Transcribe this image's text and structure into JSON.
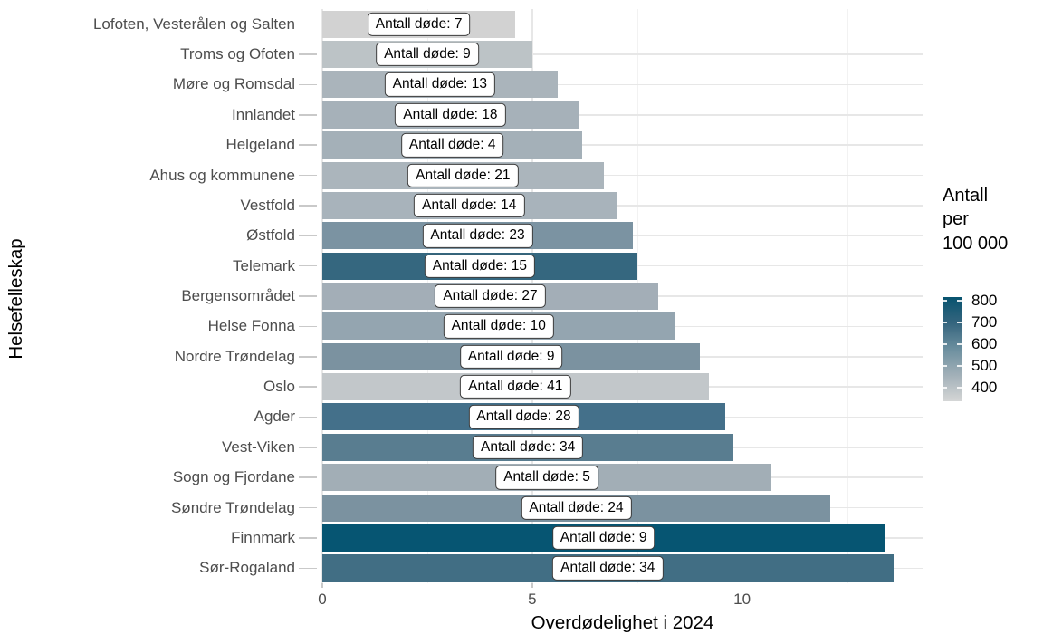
{
  "chart_data": {
    "type": "bar",
    "orientation": "horizontal",
    "title": "",
    "xlabel": "Overdødelighet i 2024",
    "ylabel": "Helsefelleskap",
    "xlim": [
      0,
      14.3
    ],
    "x_major_ticks": [
      0,
      5,
      10
    ],
    "x_minor_ticks": [
      2.5,
      7.5,
      12.5
    ],
    "grid": true,
    "bar_label_prefix": "Antall døde: ",
    "bars": [
      {
        "category": "Lofoten, Vesterålen og Salten",
        "value": 4.6,
        "deaths": 7,
        "color": "#d2d2d2"
      },
      {
        "category": "Troms og Ofoten",
        "value": 5.0,
        "deaths": 9,
        "color": "#bcc3c6"
      },
      {
        "category": "Møre og Romsdal",
        "value": 5.6,
        "deaths": 13,
        "color": "#aab4bb"
      },
      {
        "category": "Innlandet",
        "value": 6.1,
        "deaths": 18,
        "color": "#a6b1b9"
      },
      {
        "category": "Helgeland",
        "value": 6.2,
        "deaths": 4,
        "color": "#a4b0b8"
      },
      {
        "category": "Ahus og kommunene",
        "value": 6.7,
        "deaths": 21,
        "color": "#abb5bc"
      },
      {
        "category": "Vestfold",
        "value": 7.0,
        "deaths": 14,
        "color": "#a8b3bb"
      },
      {
        "category": "Østfold",
        "value": 7.4,
        "deaths": 23,
        "color": "#7b93a2"
      },
      {
        "category": "Telemark",
        "value": 7.5,
        "deaths": 15,
        "color": "#35677f"
      },
      {
        "category": "Bergensområdet",
        "value": 8.0,
        "deaths": 27,
        "color": "#a3aeb7"
      },
      {
        "category": "Helse Fonna",
        "value": 8.4,
        "deaths": 10,
        "color": "#94a5b0"
      },
      {
        "category": "Nordre Trøndelag",
        "value": 9.0,
        "deaths": 9,
        "color": "#7b92a0"
      },
      {
        "category": "Oslo",
        "value": 9.2,
        "deaths": 41,
        "color": "#c2c7ca"
      },
      {
        "category": "Agder",
        "value": 9.6,
        "deaths": 28,
        "color": "#44708a"
      },
      {
        "category": "Vest-Viken",
        "value": 9.8,
        "deaths": 34,
        "color": "#597d90"
      },
      {
        "category": "Sogn og Fjordane",
        "value": 10.7,
        "deaths": 5,
        "color": "#a2aeb6"
      },
      {
        "category": "Søndre Trøndelag",
        "value": 12.1,
        "deaths": 24,
        "color": "#7b92a0"
      },
      {
        "category": "Finnmark",
        "value": 13.4,
        "deaths": 9,
        "color": "#065572"
      },
      {
        "category": "Sør-Rogaland",
        "value": 13.6,
        "deaths": 34,
        "color": "#416e84"
      }
    ],
    "legend": {
      "title": "Antall\nper\n100 000",
      "position": "right",
      "ticks": [
        "800",
        "700",
        "600",
        "500",
        "400"
      ],
      "tick_offsets": [
        0.031,
        0.241,
        0.451,
        0.662,
        0.872
      ],
      "gradient": [
        "#07536f",
        "#35657e",
        "#6c8f9f",
        "#a2b0b8",
        "#d5d6d6"
      ]
    },
    "style_colors": {
      "grid_major": "#e7e7e7",
      "grid_minor": "#f2f2f2",
      "axis_text": "#4d4d4d",
      "axis_title": "#000000",
      "tick_mark": "#c9c9c9",
      "label_border": "#3c3c3c",
      "background": "#ffffff"
    }
  }
}
